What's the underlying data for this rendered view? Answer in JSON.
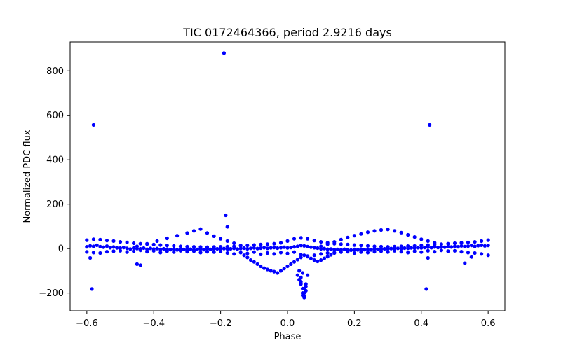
{
  "chart_data": {
    "type": "scatter",
    "title": "TIC 0172464366, period 2.9216 days",
    "xlabel": "Phase",
    "ylabel": "Normalized PDC flux",
    "xlim": [
      -0.65,
      0.65
    ],
    "ylim": [
      -280,
      930
    ],
    "xticks": [
      -0.6,
      -0.4,
      -0.2,
      0.0,
      0.2,
      0.4,
      0.6
    ],
    "xtick_labels": [
      "−0.6",
      "−0.4",
      "−0.2",
      "0.0",
      "0.2",
      "0.4",
      "0.6"
    ],
    "yticks": [
      -200,
      0,
      200,
      400,
      600,
      800
    ],
    "ytick_labels": [
      "−200",
      "0",
      "200",
      "400",
      "600",
      "800"
    ],
    "grid": false,
    "legend": "none",
    "point_color": "#0000ff",
    "series": [
      {
        "name": "",
        "x": [
          -0.6,
          -0.59,
          -0.58,
          -0.57,
          -0.56,
          -0.55,
          -0.54,
          -0.53,
          -0.52,
          -0.51,
          -0.5,
          -0.49,
          -0.48,
          -0.47,
          -0.46,
          -0.45,
          -0.44,
          -0.43,
          -0.42,
          -0.41,
          -0.4,
          -0.39,
          -0.38,
          -0.37,
          -0.36,
          -0.35,
          -0.34,
          -0.33,
          -0.32,
          -0.31,
          -0.3,
          -0.29,
          -0.28,
          -0.27,
          -0.26,
          -0.25,
          -0.24,
          -0.23,
          -0.22,
          -0.21,
          -0.2,
          -0.19,
          -0.18,
          -0.17,
          -0.16,
          -0.15,
          -0.14,
          -0.13,
          -0.12,
          -0.11,
          -0.1,
          -0.09,
          -0.08,
          -0.07,
          -0.06,
          -0.05,
          -0.04,
          -0.03,
          -0.02,
          -0.01,
          0.0,
          0.01,
          0.02,
          0.03,
          0.04,
          0.05,
          0.06,
          0.07,
          0.08,
          0.09,
          0.1,
          0.11,
          0.12,
          0.13,
          0.14,
          0.15,
          0.16,
          0.17,
          0.18,
          0.19,
          0.2,
          0.21,
          0.22,
          0.23,
          0.24,
          0.25,
          0.26,
          0.27,
          0.28,
          0.29,
          0.3,
          0.31,
          0.32,
          0.33,
          0.34,
          0.35,
          0.36,
          0.37,
          0.38,
          0.39,
          0.4,
          0.41,
          0.42,
          0.43,
          0.44,
          0.45,
          0.46,
          0.47,
          0.48,
          0.49,
          0.5,
          0.51,
          0.52,
          0.53,
          0.54,
          0.55,
          0.56,
          0.57,
          0.58,
          0.59,
          0.6,
          -0.6,
          -0.58,
          -0.56,
          -0.54,
          -0.52,
          -0.5,
          -0.48,
          -0.46,
          -0.44,
          -0.42,
          -0.4,
          -0.38,
          -0.36,
          -0.34,
          -0.32,
          -0.3,
          -0.28,
          -0.26,
          -0.24,
          -0.22,
          -0.2,
          -0.18,
          -0.16,
          -0.14,
          -0.12,
          -0.1,
          -0.08,
          -0.06,
          -0.04,
          -0.02,
          0.0,
          0.02,
          0.04,
          0.06,
          0.08,
          0.1,
          0.12,
          0.14,
          0.16,
          0.18,
          0.2,
          0.22,
          0.24,
          0.26,
          0.28,
          0.3,
          0.32,
          0.34,
          0.36,
          0.38,
          0.4,
          0.42,
          0.44,
          0.46,
          0.48,
          0.5,
          0.52,
          0.54,
          0.56,
          0.58,
          0.6,
          -0.6,
          -0.58,
          -0.56,
          -0.54,
          -0.52,
          -0.5,
          -0.48,
          -0.46,
          -0.44,
          -0.42,
          -0.4,
          -0.38,
          -0.36,
          -0.34,
          -0.32,
          -0.3,
          -0.28,
          -0.26,
          -0.24,
          -0.22,
          -0.2,
          -0.18,
          -0.16,
          -0.14,
          -0.12,
          -0.1,
          -0.08,
          -0.06,
          -0.04,
          -0.02,
          0.0,
          0.02,
          0.04,
          0.06,
          0.08,
          0.1,
          0.12,
          0.14,
          0.16,
          0.18,
          0.2,
          0.22,
          0.24,
          0.26,
          0.28,
          0.3,
          0.32,
          0.34,
          0.36,
          0.38,
          0.4,
          0.42,
          0.44,
          0.46,
          0.48,
          0.5,
          0.52,
          0.54,
          0.56,
          0.58,
          0.6,
          -0.45,
          -0.42,
          -0.39,
          -0.36,
          -0.33,
          -0.3,
          -0.28,
          -0.26,
          -0.24,
          -0.22,
          -0.2,
          -0.18,
          -0.16,
          -0.14,
          0.1,
          0.12,
          0.14,
          0.16,
          0.18,
          0.2,
          0.22,
          0.24,
          0.26,
          0.28,
          0.3,
          0.32,
          0.34,
          0.36,
          0.38,
          0.4,
          0.42,
          0.44,
          -0.13,
          -0.12,
          -0.11,
          -0.1,
          -0.09,
          -0.08,
          -0.07,
          -0.06,
          -0.05,
          -0.04,
          -0.03,
          -0.02,
          -0.01,
          0.0,
          0.01,
          0.02,
          0.03,
          0.04,
          0.05,
          0.06,
          0.07,
          0.08,
          0.09,
          0.1,
          0.11,
          0.12,
          0.13,
          0.14,
          0.03,
          0.035,
          0.04,
          0.045,
          0.05,
          0.055,
          0.06,
          0.035,
          0.04,
          0.045,
          0.05,
          0.055,
          0.04,
          0.045,
          0.05,
          0.055,
          0.045,
          0.05,
          -0.19,
          -0.58,
          0.425,
          -0.185,
          -0.18,
          -0.585,
          0.415,
          -0.59,
          -0.45,
          0.42,
          0.53,
          0.55,
          -0.44
        ],
        "y": [
          8,
          12,
          10,
          15,
          9,
          6,
          11,
          4,
          7,
          3,
          2,
          5,
          1,
          -2,
          3,
          0,
          -1,
          2,
          -3,
          1,
          -2,
          0,
          -4,
          -1,
          -3,
          -5,
          -2,
          -6,
          -3,
          -4,
          -5,
          -3,
          -6,
          -4,
          -2,
          -5,
          -3,
          -4,
          -2,
          -1,
          -3,
          0,
          -2,
          -1,
          1,
          -2,
          0,
          2,
          -1,
          1,
          3,
          0,
          2,
          4,
          1,
          3,
          5,
          2,
          4,
          6,
          3,
          5,
          8,
          10,
          14,
          12,
          9,
          6,
          4,
          2,
          -1,
          0,
          -3,
          -2,
          -5,
          -4,
          -6,
          -3,
          -5,
          -7,
          -4,
          -6,
          -3,
          -5,
          -4,
          -6,
          -2,
          -4,
          -3,
          -1,
          -2,
          0,
          -1,
          1,
          0,
          2,
          1,
          3,
          2,
          4,
          3,
          5,
          6,
          4,
          7,
          5,
          8,
          6,
          9,
          7,
          10,
          8,
          12,
          9,
          11,
          14,
          10,
          13,
          15,
          12,
          14,
          38,
          42,
          40,
          36,
          34,
          30,
          28,
          24,
          22,
          20,
          18,
          16,
          14,
          12,
          10,
          9,
          8,
          7,
          6,
          7,
          8,
          9,
          10,
          12,
          14,
          16,
          18,
          20,
          22,
          26,
          34,
          44,
          48,
          44,
          36,
          30,
          26,
          22,
          20,
          18,
          16,
          14,
          12,
          10,
          9,
          8,
          9,
          10,
          11,
          12,
          14,
          16,
          18,
          20,
          22,
          24,
          26,
          28,
          30,
          34,
          38,
          -15,
          -18,
          -20,
          -14,
          -12,
          -10,
          -16,
          -12,
          -8,
          -14,
          -10,
          -18,
          -12,
          -16,
          -10,
          -14,
          -12,
          -18,
          -14,
          -16,
          -12,
          -20,
          -24,
          -18,
          -22,
          -16,
          -26,
          -20,
          -24,
          -18,
          -22,
          -16,
          -28,
          -34,
          -30,
          -24,
          -20,
          -18,
          -16,
          -14,
          -20,
          -16,
          -18,
          -14,
          -12,
          -16,
          -10,
          -14,
          -18,
          -12,
          -16,
          -10,
          -14,
          -8,
          -12,
          -10,
          -14,
          -18,
          -20,
          -24,
          -30,
          10,
          22,
          34,
          46,
          58,
          70,
          80,
          88,
          70,
          56,
          44,
          34,
          24,
          14,
          10,
          20,
          30,
          40,
          50,
          58,
          66,
          74,
          80,
          84,
          86,
          80,
          72,
          62,
          52,
          42,
          34,
          26,
          -30,
          -40,
          -52,
          -60,
          -70,
          -80,
          -88,
          -94,
          -100,
          -104,
          -110,
          -100,
          -90,
          -80,
          -70,
          -60,
          -50,
          -40,
          -30,
          -36,
          -44,
          -52,
          -58,
          -52,
          -44,
          -36,
          -28,
          -20,
          -120,
          -140,
          -160,
          -180,
          -200,
          -160,
          -120,
          -100,
          -150,
          -210,
          -220,
          -190,
          -130,
          -200,
          -215,
          -170,
          -110,
          -180,
          880,
          557,
          557,
          150,
          98,
          -182,
          -182,
          -42,
          -70,
          -42,
          -66,
          -38,
          -75
        ]
      }
    ]
  }
}
